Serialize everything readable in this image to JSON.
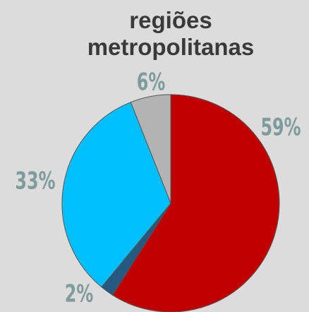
{
  "chart_data": {
    "type": "pie",
    "title": "regiões metropolitanas",
    "categories": [
      null,
      null,
      null,
      null
    ],
    "values": [
      59,
      2,
      33,
      6
    ],
    "value_labels": [
      "59%",
      "2%",
      "33%",
      "6%"
    ],
    "colors": [
      "#c00000",
      "#245a80",
      "#00bfff",
      "#b3b3b3"
    ]
  }
}
